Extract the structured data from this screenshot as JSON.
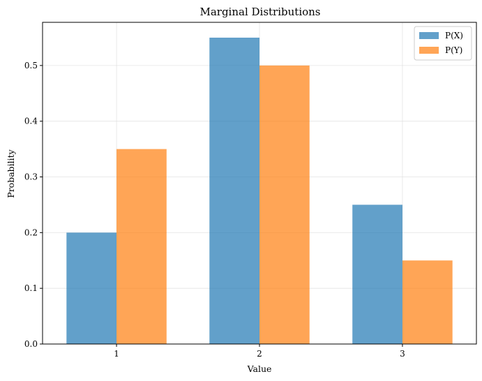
{
  "chart_data": {
    "type": "bar",
    "title": "Marginal Distributions",
    "xlabel": "Value",
    "ylabel": "Probability",
    "categories": [
      "1",
      "2",
      "3"
    ],
    "series": [
      {
        "name": "P(X)",
        "values": [
          0.2,
          0.55,
          0.25
        ],
        "color": "#1f77b4",
        "alpha": 0.7
      },
      {
        "name": "P(Y)",
        "values": [
          0.35,
          0.5,
          0.15
        ],
        "color": "#ff7f0e",
        "alpha": 0.7
      }
    ],
    "ylim": [
      0,
      0.5775
    ],
    "yticks": [
      "0.0",
      "0.1",
      "0.2",
      "0.3",
      "0.4",
      "0.5"
    ],
    "grid": true,
    "legend_position": "top-right"
  }
}
